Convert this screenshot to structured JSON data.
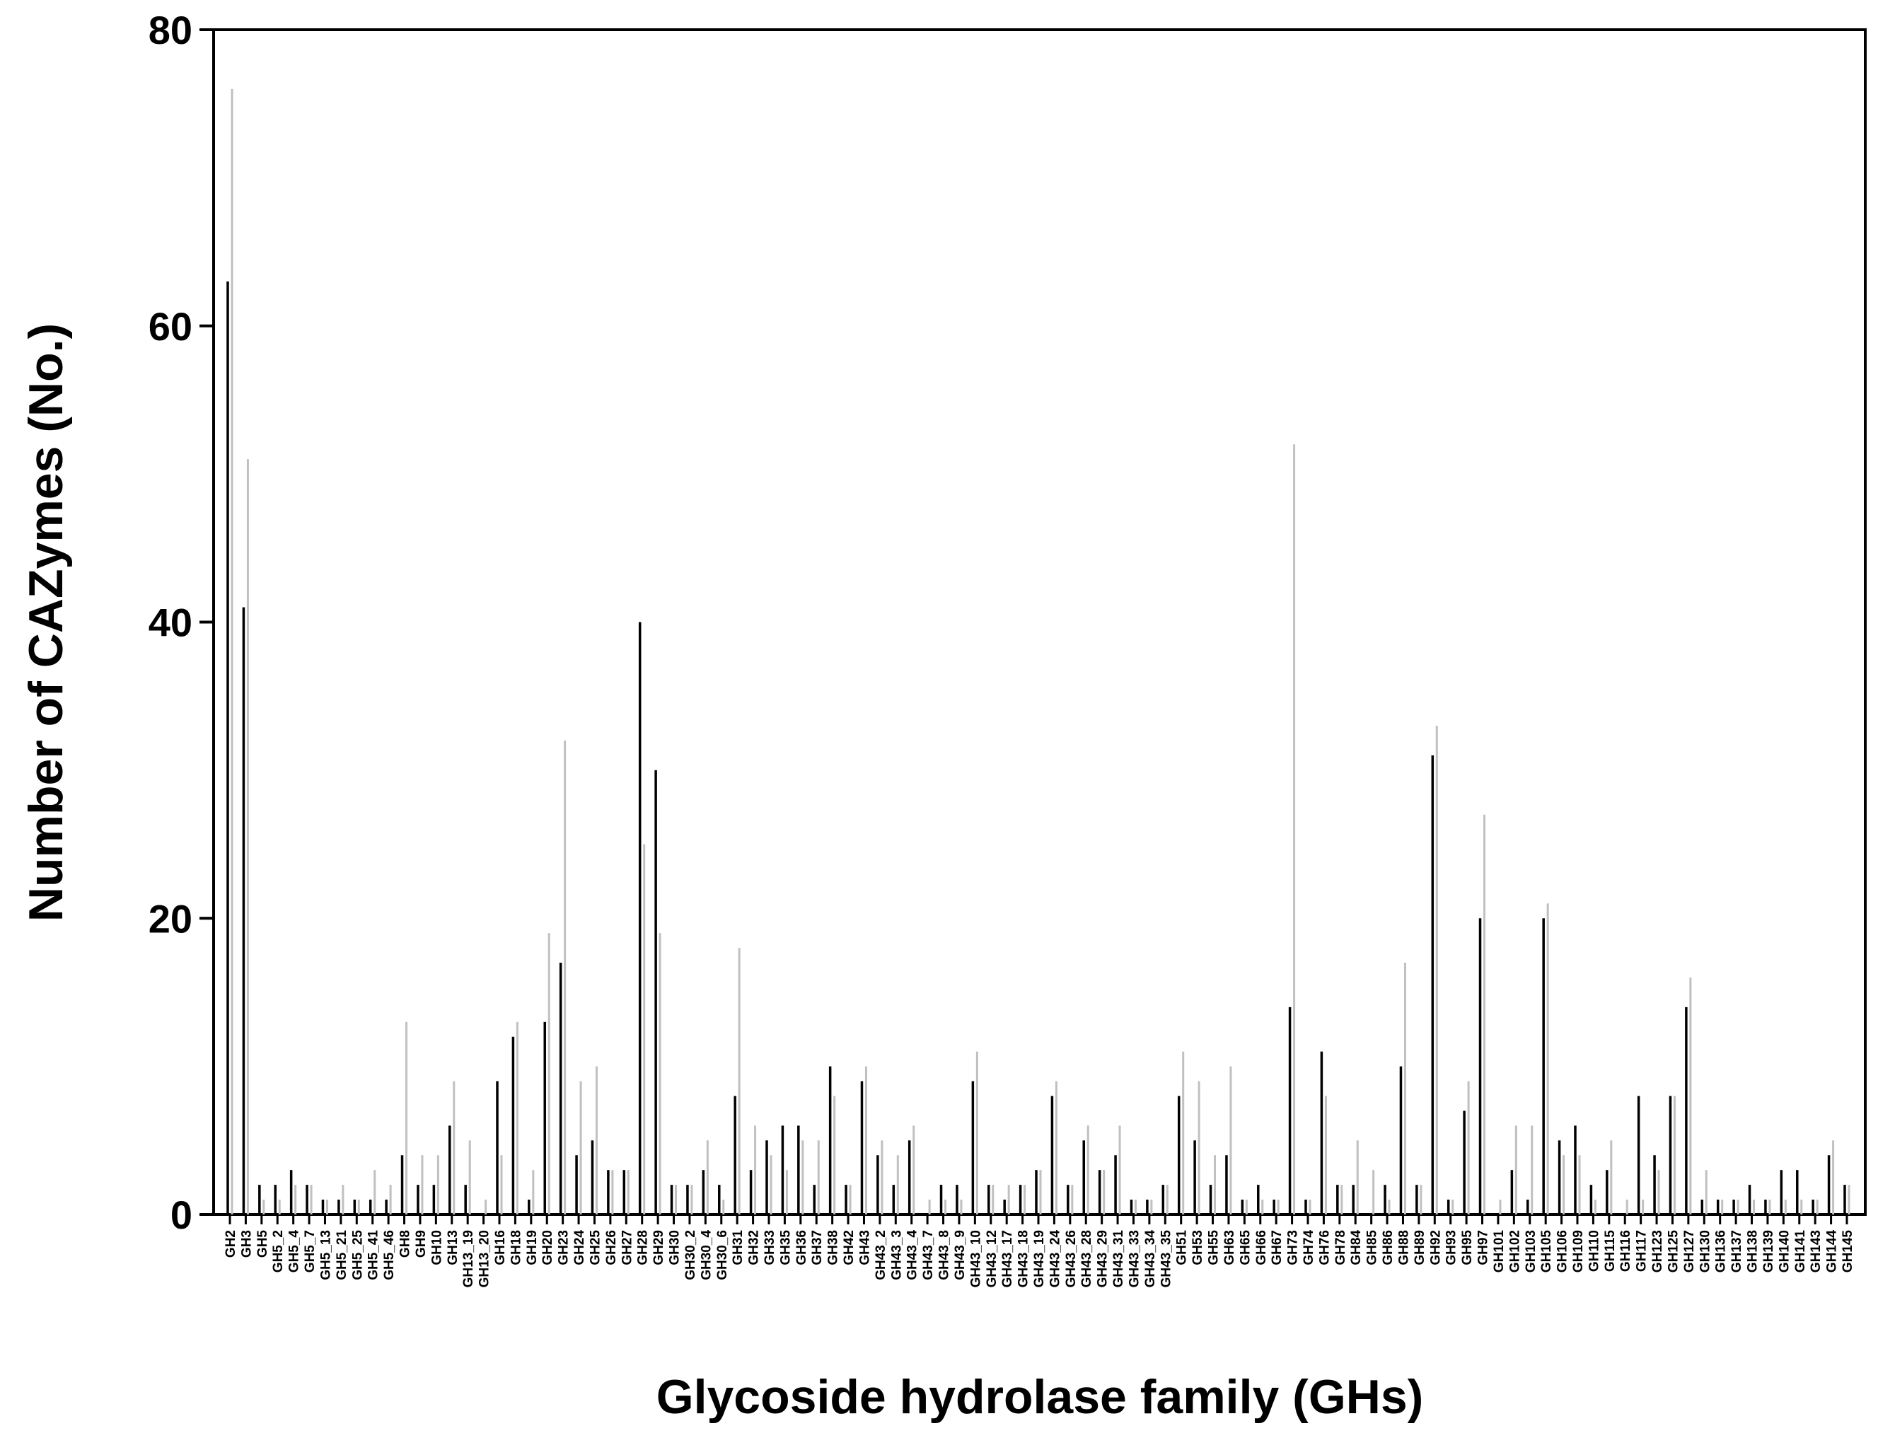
{
  "chart_data": {
    "type": "bar",
    "title": "",
    "xlabel": "Glycoside hydrolase family (GHs)",
    "ylabel": "Number of CAZymes (No.)",
    "ylim": [
      0,
      80
    ],
    "yticks": [
      0,
      20,
      40,
      60,
      80
    ],
    "grid": false,
    "legend": "none",
    "colors": {
      "series_a": "#000000",
      "series_b": "#c0c0c0",
      "axis": "#000000"
    },
    "categories": [
      "GH2",
      "GH3",
      "GH5",
      "GH5_2",
      "GH5_4",
      "GH5_7",
      "GH5_13",
      "GH5_21",
      "GH5_25",
      "GH5_41",
      "GH5_46",
      "GH8",
      "GH9",
      "GH10",
      "GH13",
      "GH13_19",
      "GH13_20",
      "GH16",
      "GH18",
      "GH19",
      "GH20",
      "GH23",
      "GH24",
      "GH25",
      "GH26",
      "GH27",
      "GH28",
      "GH29",
      "GH30",
      "GH30_2",
      "GH30_4",
      "GH30_6",
      "GH31",
      "GH32",
      "GH33",
      "GH35",
      "GH36",
      "GH37",
      "GH38",
      "GH42",
      "GH43",
      "GH43_2",
      "GH43_3",
      "GH43_4",
      "GH43_7",
      "GH43_8",
      "GH43_9",
      "GH43_10",
      "GH43_12",
      "GH43_17",
      "GH43_18",
      "GH43_19",
      "GH43_24",
      "GH43_26",
      "GH43_28",
      "GH43_29",
      "GH43_31",
      "GH43_33",
      "GH43_34",
      "GH43_35",
      "GH51",
      "GH53",
      "GH55",
      "GH63",
      "GH65",
      "GH66",
      "GH67",
      "GH73",
      "GH74",
      "GH76",
      "GH78",
      "GH84",
      "GH85",
      "GH86",
      "GH88",
      "GH89",
      "GH92",
      "GH93",
      "GH95",
      "GH97",
      "GH101",
      "GH102",
      "GH103",
      "GH105",
      "GH106",
      "GH109",
      "GH110",
      "GH115",
      "GH116",
      "GH117",
      "GH123",
      "GH125",
      "GH127",
      "GH130",
      "GH136",
      "GH137",
      "GH138",
      "GH139",
      "GH140",
      "GH141",
      "GH143",
      "GH144",
      "GH145"
    ],
    "series": [
      {
        "values": [
          63,
          41,
          2,
          2,
          3,
          2,
          1,
          1,
          1,
          1,
          1,
          4,
          2,
          2,
          6,
          2,
          0,
          9,
          12,
          1,
          13,
          17,
          4,
          5,
          3,
          3,
          40,
          30,
          2,
          2,
          3,
          2,
          8,
          3,
          5,
          6,
          6,
          2,
          10,
          2,
          9,
          4,
          2,
          5,
          0,
          2,
          2,
          9,
          2,
          1,
          2,
          3,
          8,
          2,
          5,
          3,
          4,
          1,
          1,
          2,
          8,
          5,
          2,
          4,
          1,
          2,
          1,
          14,
          1,
          11,
          2,
          2,
          0,
          2,
          10,
          2,
          31,
          1,
          7,
          20,
          0,
          3,
          1,
          20,
          5,
          6,
          2,
          3,
          0,
          8,
          4,
          8,
          14,
          1,
          1,
          1,
          2,
          1,
          3,
          3,
          1,
          4,
          2
        ]
      },
      {
        "values": [
          76,
          51,
          1,
          1,
          2,
          2,
          1,
          2,
          1,
          3,
          2,
          13,
          4,
          4,
          9,
          5,
          1,
          4,
          13,
          3,
          19,
          32,
          9,
          10,
          3,
          3,
          25,
          19,
          2,
          2,
          5,
          1,
          18,
          6,
          4,
          3,
          5,
          5,
          8,
          2,
          10,
          5,
          4,
          6,
          1,
          1,
          1,
          11,
          2,
          2,
          2,
          3,
          9,
          2,
          6,
          3,
          6,
          1,
          1,
          2,
          11,
          9,
          4,
          10,
          1,
          1,
          1,
          52,
          1,
          8,
          2,
          5,
          3,
          1,
          17,
          2,
          33,
          1,
          9,
          27,
          1,
          6,
          6,
          21,
          4,
          4,
          1,
          5,
          1,
          1,
          3,
          8,
          16,
          3,
          1,
          1,
          1,
          1,
          1,
          1,
          1,
          5,
          2
        ]
      }
    ]
  }
}
